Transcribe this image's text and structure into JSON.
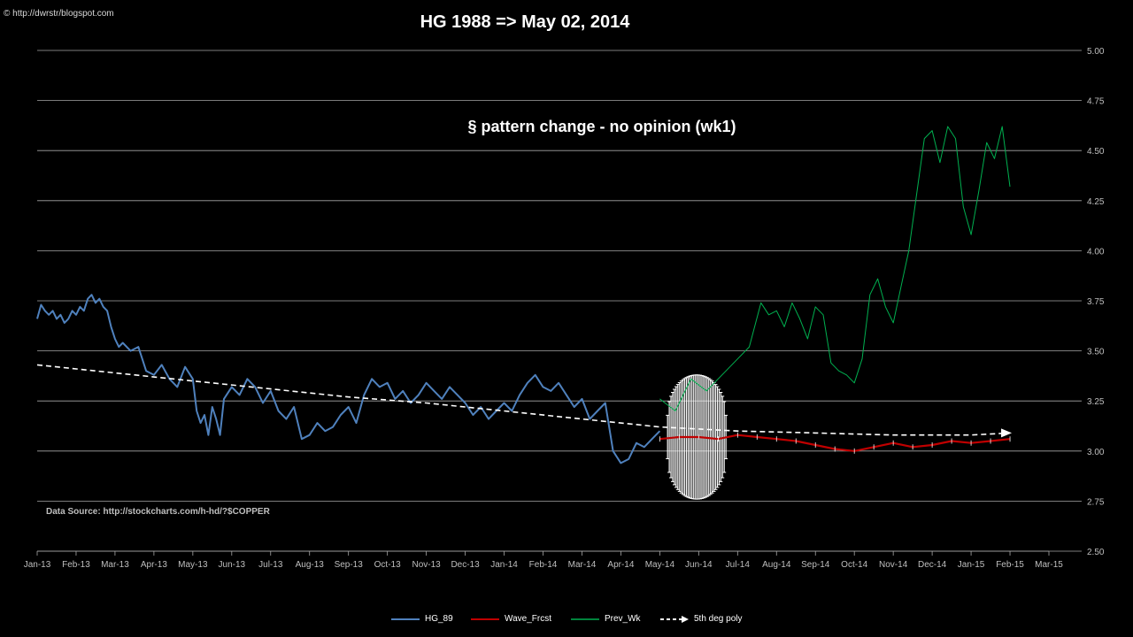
{
  "watermark": "© http://dwrstr/blogspot.com",
  "chart_data": {
    "type": "line",
    "title": "HG 1988 => May 02, 2014",
    "annotation": "§ pattern change - no opinion  (wk1)",
    "source_note": "Data Source:  http://stockcharts.com/h-hd/?$COPPER",
    "xlabel": "",
    "ylabel": "",
    "x_tick_labels": [
      "Jan-13",
      "Feb-13",
      "Mar-13",
      "Apr-13",
      "May-13",
      "Jun-13",
      "Jul-13",
      "Aug-13",
      "Sep-13",
      "Oct-13",
      "Nov-13",
      "Dec-13",
      "Jan-14",
      "Feb-14",
      "Mar-14",
      "Apr-14",
      "May-14",
      "Jun-14",
      "Jul-14",
      "Aug-14",
      "Sep-14",
      "Oct-14",
      "Nov-14",
      "Dec-14",
      "Jan-15",
      "Feb-15",
      "Mar-15"
    ],
    "y_tick_labels": [
      "2.50",
      "2.75",
      "3.00",
      "3.25",
      "3.50",
      "3.75",
      "4.00",
      "4.25",
      "4.50",
      "4.75",
      "5.00"
    ],
    "ylim": [
      2.5,
      5.0
    ],
    "xlim": [
      0,
      26
    ],
    "y_axis_side": "right",
    "grid": true,
    "legend_position": "bottom",
    "series": [
      {
        "name": "HG_89",
        "color": "#4f81bd",
        "x": [
          0,
          0.1,
          0.2,
          0.3,
          0.4,
          0.5,
          0.6,
          0.7,
          0.8,
          0.9,
          1.0,
          1.1,
          1.2,
          1.3,
          1.4,
          1.5,
          1.6,
          1.7,
          1.8,
          1.9,
          2.0,
          2.1,
          2.2,
          2.4,
          2.6,
          2.8,
          3.0,
          3.2,
          3.4,
          3.6,
          3.8,
          4.0,
          4.1,
          4.2,
          4.3,
          4.4,
          4.5,
          4.6,
          4.7,
          4.8,
          5.0,
          5.2,
          5.4,
          5.6,
          5.8,
          6.0,
          6.2,
          6.4,
          6.6,
          6.8,
          7.0,
          7.2,
          7.4,
          7.6,
          7.8,
          8.0,
          8.2,
          8.4,
          8.6,
          8.8,
          9.0,
          9.2,
          9.4,
          9.6,
          9.8,
          10.0,
          10.2,
          10.4,
          10.6,
          10.8,
          11.0,
          11.2,
          11.4,
          11.6,
          11.8,
          12.0,
          12.2,
          12.4,
          12.6,
          12.8,
          13.0,
          13.2,
          13.4,
          13.6,
          13.8,
          14.0,
          14.2,
          14.4,
          14.6,
          14.8,
          15.0,
          15.2,
          15.4,
          15.6,
          15.8,
          16.0
        ],
        "values": [
          3.66,
          3.73,
          3.7,
          3.68,
          3.7,
          3.66,
          3.68,
          3.64,
          3.66,
          3.7,
          3.68,
          3.72,
          3.7,
          3.76,
          3.78,
          3.74,
          3.76,
          3.72,
          3.7,
          3.62,
          3.56,
          3.52,
          3.54,
          3.5,
          3.52,
          3.4,
          3.38,
          3.43,
          3.36,
          3.32,
          3.42,
          3.36,
          3.2,
          3.14,
          3.18,
          3.08,
          3.22,
          3.16,
          3.08,
          3.26,
          3.32,
          3.28,
          3.36,
          3.32,
          3.24,
          3.3,
          3.2,
          3.16,
          3.22,
          3.06,
          3.08,
          3.14,
          3.1,
          3.12,
          3.18,
          3.22,
          3.14,
          3.28,
          3.36,
          3.32,
          3.34,
          3.26,
          3.3,
          3.24,
          3.28,
          3.34,
          3.3,
          3.26,
          3.32,
          3.28,
          3.24,
          3.18,
          3.22,
          3.16,
          3.2,
          3.24,
          3.2,
          3.28,
          3.34,
          3.38,
          3.32,
          3.3,
          3.34,
          3.28,
          3.22,
          3.26,
          3.16,
          3.2,
          3.24,
          3.0,
          2.94,
          2.96,
          3.04,
          3.02,
          3.06,
          3.1
        ]
      },
      {
        "name": "Wave_Frcst",
        "color": "#c00000",
        "x": [
          16.0,
          16.5,
          17.0,
          17.5,
          18.0,
          18.5,
          19.0,
          19.5,
          20.0,
          20.5,
          21.0,
          21.5,
          22.0,
          22.5,
          23.0,
          23.5,
          24.0,
          24.5,
          25.0
        ],
        "values": [
          3.06,
          3.07,
          3.07,
          3.06,
          3.08,
          3.07,
          3.06,
          3.05,
          3.03,
          3.01,
          3.0,
          3.02,
          3.04,
          3.02,
          3.03,
          3.05,
          3.04,
          3.05,
          3.06
        ]
      },
      {
        "name": "Prev_Wk",
        "color": "#00b050",
        "x": [
          16.0,
          16.4,
          16.8,
          17.2,
          17.6,
          18.0,
          18.3,
          18.6,
          18.8,
          19.0,
          19.2,
          19.4,
          19.6,
          19.8,
          20.0,
          20.2,
          20.4,
          20.6,
          20.8,
          21.0,
          21.2,
          21.4,
          21.6,
          21.8,
          22.0,
          22.2,
          22.4,
          22.6,
          22.8,
          23.0,
          23.2,
          23.4,
          23.6,
          23.8,
          24.0,
          24.2,
          24.4,
          24.6,
          24.8,
          25.0
        ],
        "values": [
          3.26,
          3.2,
          3.36,
          3.3,
          3.38,
          3.46,
          3.52,
          3.74,
          3.68,
          3.7,
          3.62,
          3.74,
          3.66,
          3.56,
          3.72,
          3.68,
          3.44,
          3.4,
          3.38,
          3.34,
          3.46,
          3.78,
          3.86,
          3.72,
          3.64,
          3.82,
          4.0,
          4.28,
          4.56,
          4.6,
          4.44,
          4.62,
          4.56,
          4.22,
          4.08,
          4.3,
          4.54,
          4.46,
          4.62,
          4.32
        ]
      },
      {
        "name": "5th deg poly",
        "color": "#ffffff",
        "dashed": true,
        "x": [
          0,
          2,
          4,
          6,
          8,
          10,
          12,
          14,
          16,
          18,
          20,
          22,
          24,
          25
        ],
        "values": [
          3.43,
          3.39,
          3.35,
          3.31,
          3.27,
          3.24,
          3.2,
          3.16,
          3.12,
          3.1,
          3.09,
          3.08,
          3.08,
          3.09
        ]
      }
    ],
    "forecast_band": {
      "x_range": [
        16.2,
        17.7
      ],
      "upper": 3.38,
      "lower": 2.76
    }
  }
}
